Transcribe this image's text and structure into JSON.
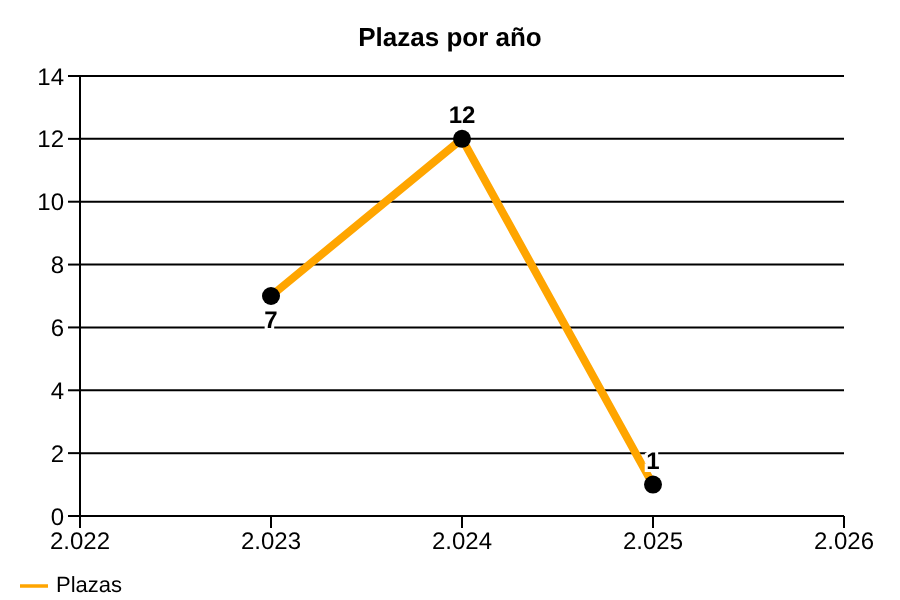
{
  "chart_data": {
    "type": "line",
    "title": "Plazas por año",
    "x": [
      2023,
      2024,
      2025
    ],
    "series": [
      {
        "name": "Plazas",
        "color": "#ffa500",
        "values": [
          7,
          12,
          1
        ]
      }
    ],
    "xlim": [
      2022,
      2026
    ],
    "xticks": [
      {
        "value": 2022,
        "label": "2.022"
      },
      {
        "value": 2023,
        "label": "2.023"
      },
      {
        "value": 2024,
        "label": "2.024"
      },
      {
        "value": 2025,
        "label": "2.025"
      },
      {
        "value": 2026,
        "label": "2.026"
      }
    ],
    "ylim": [
      0,
      14
    ],
    "yticks": [
      0,
      2,
      4,
      6,
      8,
      10,
      12,
      14
    ],
    "grid": "y",
    "legend": "bottom left",
    "marker": "circle",
    "line_style": "solid",
    "data_labels": true
  }
}
